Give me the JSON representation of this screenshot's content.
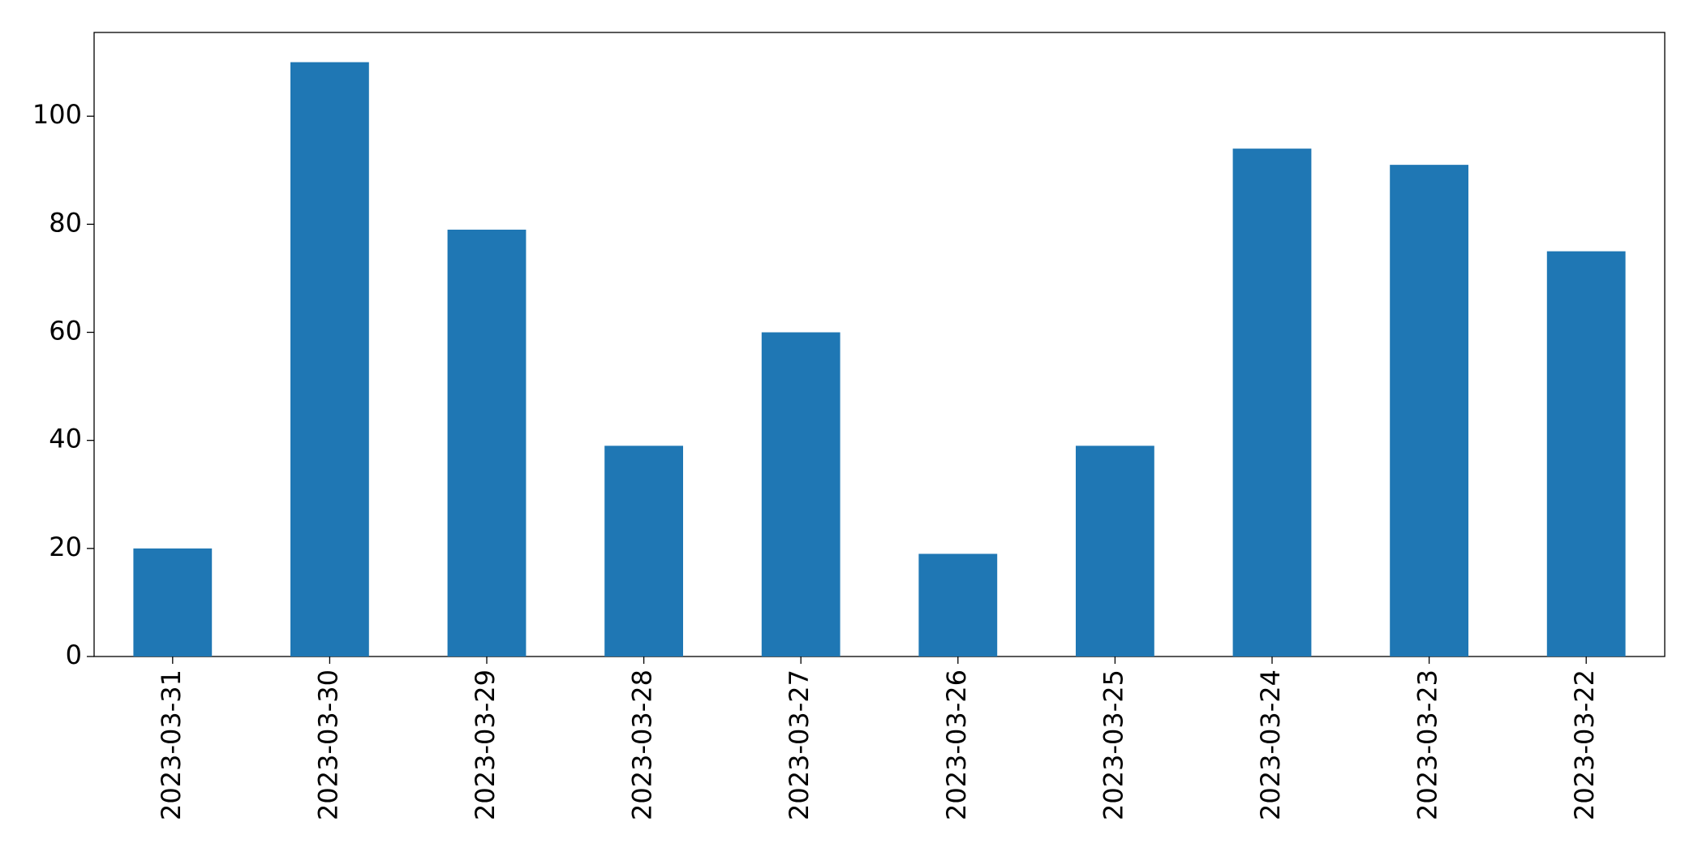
{
  "chart_data": {
    "type": "bar",
    "categories": [
      "2023-03-31",
      "2023-03-30",
      "2023-03-29",
      "2023-03-28",
      "2023-03-27",
      "2023-03-26",
      "2023-03-25",
      "2023-03-24",
      "2023-03-23",
      "2023-03-22"
    ],
    "values": [
      20,
      110,
      79,
      39,
      60,
      19,
      39,
      94,
      91,
      75
    ],
    "color": "#1f77b4",
    "ylim": [
      0,
      115.5
    ],
    "yticks": [
      0,
      20,
      40,
      60,
      80,
      100
    ],
    "grid": false
  }
}
